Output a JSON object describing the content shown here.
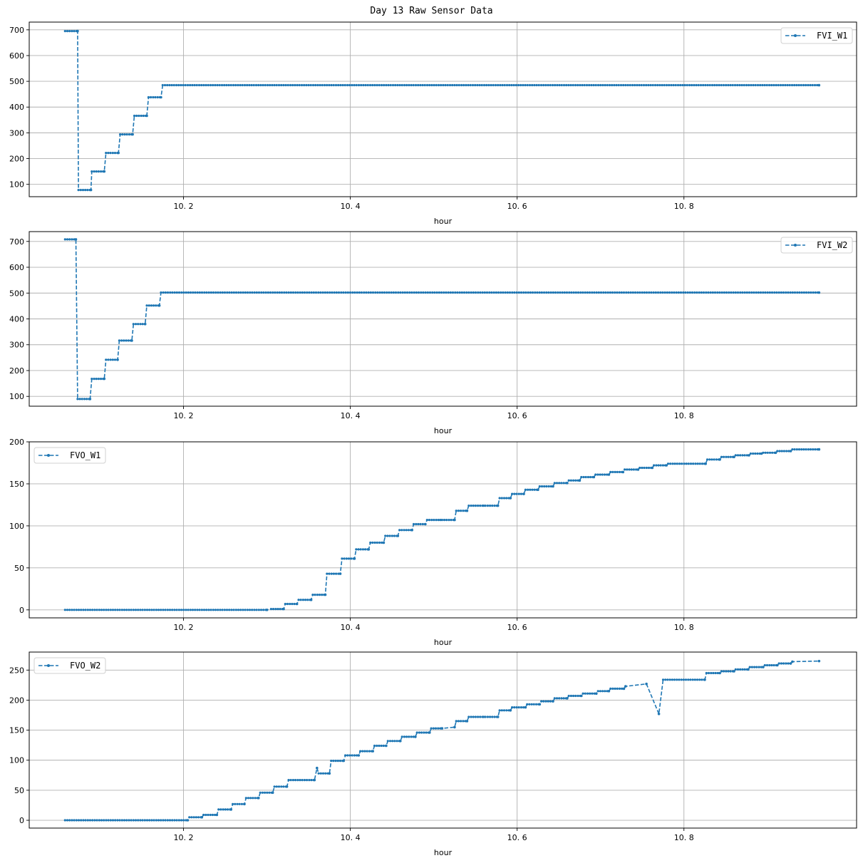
{
  "figure": {
    "title": "Day 13 Raw Sensor Data",
    "line_color": "#1f77b4",
    "grid_color": "#b0b0b0"
  },
  "chart_data": [
    {
      "type": "line",
      "title": "",
      "legend": [
        "FVI_W1"
      ],
      "legend_position": "upper right",
      "xlabel": "hour",
      "ylabel": "",
      "grid": true,
      "xticks": [
        "10.2",
        "10.4",
        "10.6",
        "10.8"
      ],
      "yticks": [
        "100",
        "200",
        "300",
        "400",
        "500",
        "600",
        "700"
      ],
      "xlim": [
        10.015,
        11.007
      ],
      "ylim": [
        52,
        730
      ],
      "series": [
        {
          "name": "FVI_W1",
          "style": "dashed line with point markers",
          "x": [
            10.058,
            10.073,
            10.074,
            10.089,
            10.09,
            10.105,
            10.107,
            10.122,
            10.124,
            10.139,
            10.141,
            10.156,
            10.158,
            10.173,
            10.175,
            10.962
          ],
          "y": [
            695,
            695,
            78,
            78,
            150,
            150,
            222,
            222,
            294,
            294,
            366,
            366,
            438,
            438,
            485,
            485
          ]
        }
      ]
    },
    {
      "type": "line",
      "title": "",
      "legend": [
        "FVI_W2"
      ],
      "legend_position": "upper right",
      "xlabel": "hour",
      "ylabel": "",
      "grid": true,
      "xticks": [
        "10.2",
        "10.4",
        "10.6",
        "10.8"
      ],
      "yticks": [
        "100",
        "200",
        "300",
        "400",
        "500",
        "600",
        "700"
      ],
      "xlim": [
        10.015,
        11.007
      ],
      "ylim": [
        62,
        738
      ],
      "series": [
        {
          "name": "FVI_W2",
          "style": "dashed line with point markers",
          "x": [
            10.058,
            10.071,
            10.073,
            10.088,
            10.09,
            10.105,
            10.107,
            10.121,
            10.123,
            10.138,
            10.14,
            10.154,
            10.156,
            10.171,
            10.173,
            10.962
          ],
          "y": [
            708,
            708,
            90,
            90,
            168,
            168,
            242,
            242,
            316,
            316,
            380,
            380,
            452,
            452,
            502,
            502
          ]
        }
      ]
    },
    {
      "type": "line",
      "title": "",
      "legend": [
        "FVO_W1"
      ],
      "legend_position": "upper left",
      "xlabel": "hour",
      "ylabel": "",
      "grid": true,
      "xticks": [
        "10.2",
        "10.4",
        "10.6",
        "10.8"
      ],
      "yticks": [
        "0",
        "50",
        "100",
        "150",
        "200"
      ],
      "xlim": [
        10.015,
        11.007
      ],
      "ylim": [
        -9.5,
        200
      ],
      "series": [
        {
          "name": "FVO_W1",
          "style": "dashed line with point markers",
          "x": [
            10.058,
            10.3,
            10.305,
            10.32,
            10.322,
            10.336,
            10.338,
            10.353,
            10.355,
            10.37,
            10.372,
            10.388,
            10.39,
            10.405,
            10.407,
            10.422,
            10.424,
            10.44,
            10.442,
            10.457,
            10.459,
            10.474,
            10.476,
            10.49,
            10.492,
            10.508,
            10.51,
            10.525,
            10.527,
            10.54,
            10.542,
            10.56,
            10.562,
            10.577,
            10.579,
            10.592,
            10.594,
            10.608,
            10.61,
            10.625,
            10.627,
            10.643,
            10.645,
            10.66,
            10.662,
            10.675,
            10.677,
            10.692,
            10.694,
            10.71,
            10.712,
            10.727,
            10.729,
            10.745,
            10.747,
            10.762,
            10.764,
            10.779,
            10.781,
            10.826,
            10.828,
            10.843,
            10.845,
            10.86,
            10.862,
            10.878,
            10.88,
            10.893,
            10.895,
            10.91,
            10.912,
            10.928,
            10.93,
            10.962
          ],
          "y": [
            0,
            0,
            1,
            1,
            7,
            7,
            12,
            12,
            18,
            18,
            43,
            43,
            61,
            61,
            72,
            72,
            80,
            80,
            88,
            88,
            95,
            95,
            102,
            102,
            107,
            107,
            107,
            107,
            118,
            118,
            124,
            124,
            124,
            124,
            133,
            133,
            138,
            138,
            143,
            143,
            147,
            147,
            151,
            151,
            154,
            154,
            158,
            158,
            161,
            161,
            164,
            164,
            167,
            167,
            169,
            169,
            172,
            172,
            174,
            174,
            179,
            179,
            182,
            182,
            184,
            184,
            186,
            186,
            187,
            187,
            189,
            189,
            191,
            191
          ]
        }
      ]
    },
    {
      "type": "line",
      "title": "",
      "legend": [
        "FVO_W2"
      ],
      "legend_position": "upper left",
      "xlabel": "hour",
      "ylabel": "",
      "grid": true,
      "xticks": [
        "10.2",
        "10.4",
        "10.6",
        "10.8"
      ],
      "yticks": [
        "0",
        "50",
        "100",
        "150",
        "200",
        "250"
      ],
      "xlim": [
        10.015,
        11.007
      ],
      "ylim": [
        -13,
        280
      ],
      "series": [
        {
          "name": "FVO_W2",
          "style": "dashed line with point markers",
          "x": [
            10.058,
            10.205,
            10.207,
            10.222,
            10.224,
            10.24,
            10.242,
            10.257,
            10.259,
            10.273,
            10.275,
            10.29,
            10.292,
            10.307,
            10.309,
            10.324,
            10.326,
            10.357,
            10.36,
            10.362,
            10.375,
            10.377,
            10.392,
            10.394,
            10.41,
            10.412,
            10.427,
            10.429,
            10.443,
            10.445,
            10.46,
            10.462,
            10.478,
            10.48,
            10.495,
            10.497,
            10.51,
            10.525,
            10.527,
            10.54,
            10.542,
            10.56,
            10.562,
            10.577,
            10.579,
            10.592,
            10.594,
            10.61,
            10.612,
            10.627,
            10.629,
            10.643,
            10.645,
            10.66,
            10.662,
            10.677,
            10.679,
            10.695,
            10.697,
            10.71,
            10.712,
            10.728,
            10.73,
            10.755,
            10.77,
            10.775,
            10.825,
            10.827,
            10.843,
            10.845,
            10.86,
            10.862,
            10.877,
            10.879,
            10.895,
            10.897,
            10.912,
            10.914,
            10.928,
            10.93,
            10.962
          ],
          "y": [
            0,
            0,
            5,
            5,
            9,
            9,
            18,
            18,
            27,
            27,
            37,
            37,
            46,
            46,
            56,
            56,
            67,
            67,
            87,
            78,
            78,
            99,
            99,
            108,
            108,
            115,
            115,
            124,
            124,
            132,
            132,
            139,
            139,
            146,
            146,
            153,
            153,
            155,
            165,
            165,
            172,
            172,
            172,
            172,
            183,
            183,
            188,
            188,
            193,
            193,
            198,
            198,
            203,
            203,
            207,
            207,
            211,
            211,
            215,
            215,
            219,
            219,
            223,
            227,
            177,
            234,
            234,
            245,
            245,
            248,
            248,
            251,
            251,
            255,
            255,
            258,
            258,
            261,
            261,
            264,
            265
          ]
        }
      ]
    }
  ]
}
